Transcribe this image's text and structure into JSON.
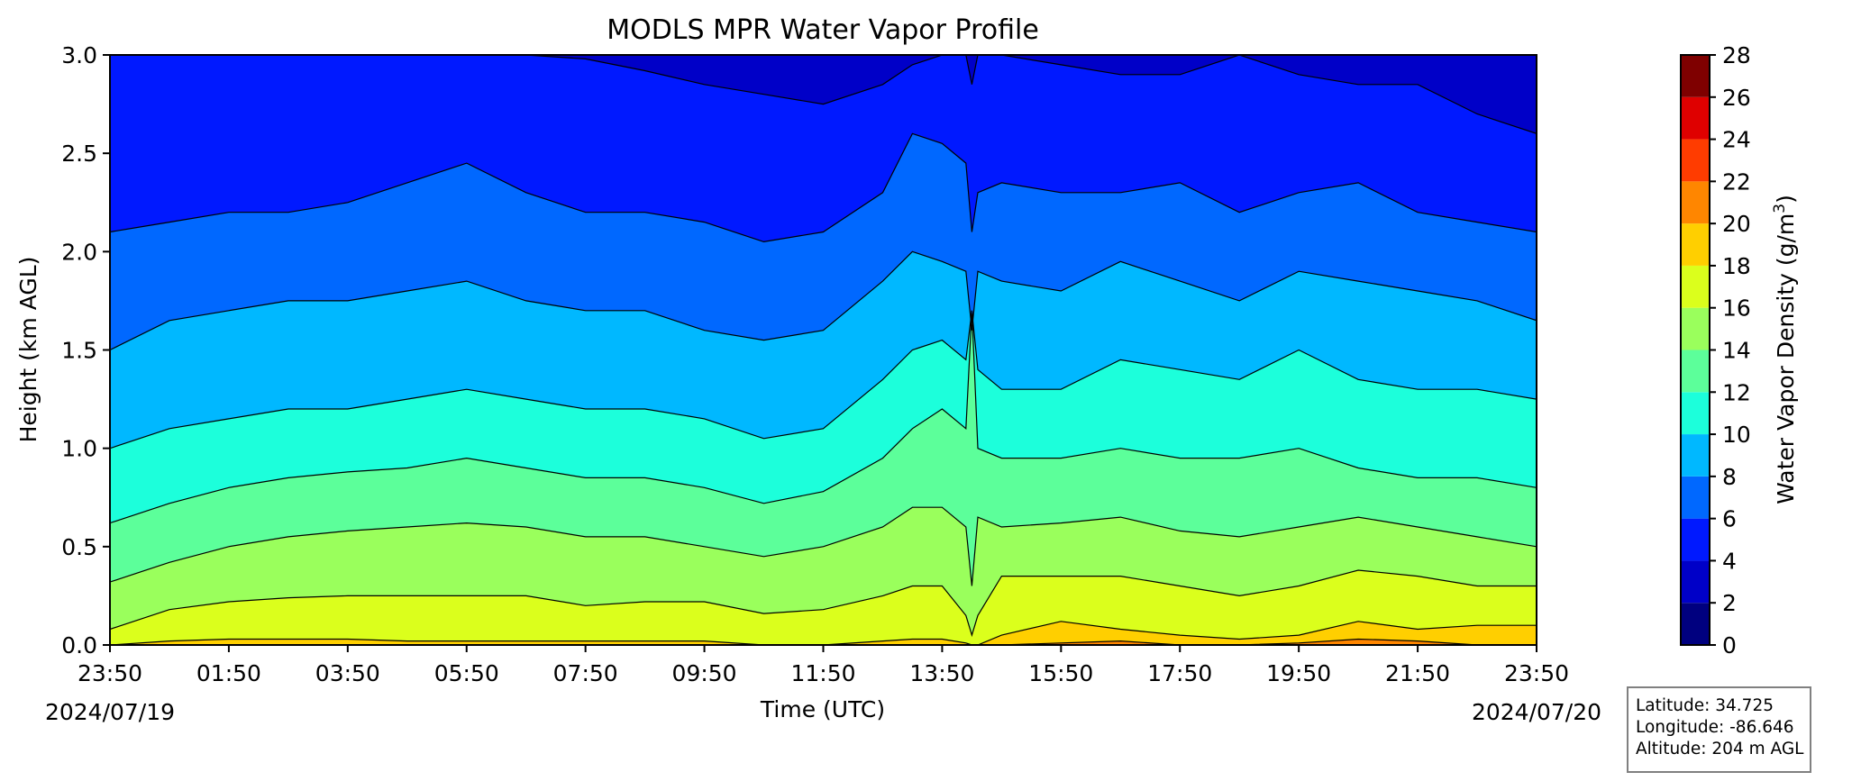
{
  "chart_data": {
    "type": "contour",
    "title": "MODLS MPR Water Vapor Profile",
    "xlabel": "Time (UTC)",
    "ylabel": "Height (km AGL)",
    "x_tick_labels": [
      "23:50",
      "01:50",
      "03:50",
      "05:50",
      "07:50",
      "09:50",
      "11:50",
      "13:50",
      "15:50",
      "17:50",
      "19:50",
      "21:50",
      "23:50"
    ],
    "start_date": "2024/07/19",
    "end_date": "2024/07/20",
    "xlim_hours": [
      0,
      24
    ],
    "ylim": [
      0,
      3.0
    ],
    "y_ticks": [
      0.0,
      0.5,
      1.0,
      1.5,
      2.0,
      2.5,
      3.0
    ],
    "colorbar": {
      "label": "Water Vapor Density (g/m",
      "label_superscript": "3",
      "label_suffix": ")",
      "levels": [
        0,
        2,
        4,
        6,
        8,
        10,
        12,
        14,
        16,
        18,
        20,
        22,
        24,
        26,
        28
      ],
      "colors": [
        "#00007f",
        "#0000c8",
        "#0019ff",
        "#0068ff",
        "#00b8ff",
        "#1cffdb",
        "#5cff9a",
        "#9aff5c",
        "#dbff1c",
        "#ffcf00",
        "#ff8600",
        "#ff3c00",
        "#df0000",
        "#7f0000"
      ]
    },
    "contour_heights_km": {
      "hours": [
        0,
        1,
        2,
        3,
        4,
        5,
        6,
        7,
        8,
        9,
        10,
        11,
        12,
        13,
        13.5,
        14,
        14.4,
        14.5,
        14.6,
        15,
        16,
        17,
        18,
        19,
        20,
        21,
        22,
        23,
        24
      ],
      "level_4": [
        3.0,
        3.0,
        3.0,
        3.0,
        3.0,
        3.0,
        3.0,
        3.0,
        2.98,
        2.92,
        2.85,
        2.8,
        2.75,
        2.85,
        2.95,
        3.0,
        3.0,
        2.85,
        3.0,
        3.0,
        2.95,
        2.9,
        2.9,
        3.0,
        2.9,
        2.85,
        2.85,
        2.7,
        2.6
      ],
      "level_6": [
        2.1,
        2.15,
        2.2,
        2.2,
        2.25,
        2.35,
        2.45,
        2.3,
        2.2,
        2.2,
        2.15,
        2.05,
        2.1,
        2.3,
        2.6,
        2.55,
        2.45,
        2.1,
        2.3,
        2.35,
        2.3,
        2.3,
        2.35,
        2.2,
        2.3,
        2.35,
        2.2,
        2.15,
        2.1
      ],
      "level_8": [
        1.5,
        1.65,
        1.7,
        1.75,
        1.75,
        1.8,
        1.85,
        1.75,
        1.7,
        1.7,
        1.6,
        1.55,
        1.6,
        1.85,
        2.0,
        1.95,
        1.9,
        1.6,
        1.9,
        1.85,
        1.8,
        1.95,
        1.85,
        1.75,
        1.9,
        1.85,
        1.8,
        1.75,
        1.65
      ],
      "level_10": [
        1.0,
        1.1,
        1.15,
        1.2,
        1.2,
        1.25,
        1.3,
        1.25,
        1.2,
        1.2,
        1.15,
        1.05,
        1.1,
        1.35,
        1.5,
        1.55,
        1.45,
        1.7,
        1.4,
        1.3,
        1.3,
        1.45,
        1.4,
        1.35,
        1.5,
        1.35,
        1.3,
        1.3,
        1.25
      ],
      "level_12": [
        0.62,
        0.72,
        0.8,
        0.85,
        0.88,
        0.9,
        0.95,
        0.9,
        0.85,
        0.85,
        0.8,
        0.72,
        0.78,
        0.95,
        1.1,
        1.2,
        1.1,
        1.7,
        1.0,
        0.95,
        0.95,
        1.0,
        0.95,
        0.95,
        1.0,
        0.9,
        0.85,
        0.85,
        0.8
      ],
      "level_14": [
        0.32,
        0.42,
        0.5,
        0.55,
        0.58,
        0.6,
        0.62,
        0.6,
        0.55,
        0.55,
        0.5,
        0.45,
        0.5,
        0.6,
        0.7,
        0.7,
        0.6,
        0.3,
        0.65,
        0.6,
        0.62,
        0.65,
        0.58,
        0.55,
        0.6,
        0.65,
        0.6,
        0.55,
        0.5
      ],
      "level_16": [
        0.08,
        0.18,
        0.22,
        0.24,
        0.25,
        0.25,
        0.25,
        0.25,
        0.2,
        0.22,
        0.22,
        0.16,
        0.18,
        0.25,
        0.3,
        0.3,
        0.15,
        0.05,
        0.15,
        0.35,
        0.35,
        0.35,
        0.3,
        0.25,
        0.3,
        0.38,
        0.35,
        0.3,
        0.3
      ],
      "level_18": [
        0.0,
        0.02,
        0.03,
        0.03,
        0.03,
        0.02,
        0.02,
        0.02,
        0.02,
        0.02,
        0.02,
        0.0,
        0.0,
        0.02,
        0.03,
        0.03,
        0.01,
        0.0,
        0.0,
        0.05,
        0.12,
        0.08,
        0.05,
        0.03,
        0.05,
        0.12,
        0.08,
        0.1,
        0.1
      ],
      "level_20": [
        0.0,
        0.0,
        0.0,
        0.0,
        0.0,
        0.0,
        0.0,
        0.0,
        0.0,
        0.0,
        0.0,
        0.0,
        0.0,
        0.0,
        0.0,
        0.0,
        0.0,
        0.0,
        0.0,
        0.0,
        0.01,
        0.02,
        0.0,
        0.0,
        0.01,
        0.03,
        0.02,
        0.0,
        0.0
      ]
    }
  },
  "station": {
    "latitude": "Latitude: 34.725",
    "longitude": "Longitude: -86.646",
    "altitude": "Altitude: 204 m AGL"
  }
}
